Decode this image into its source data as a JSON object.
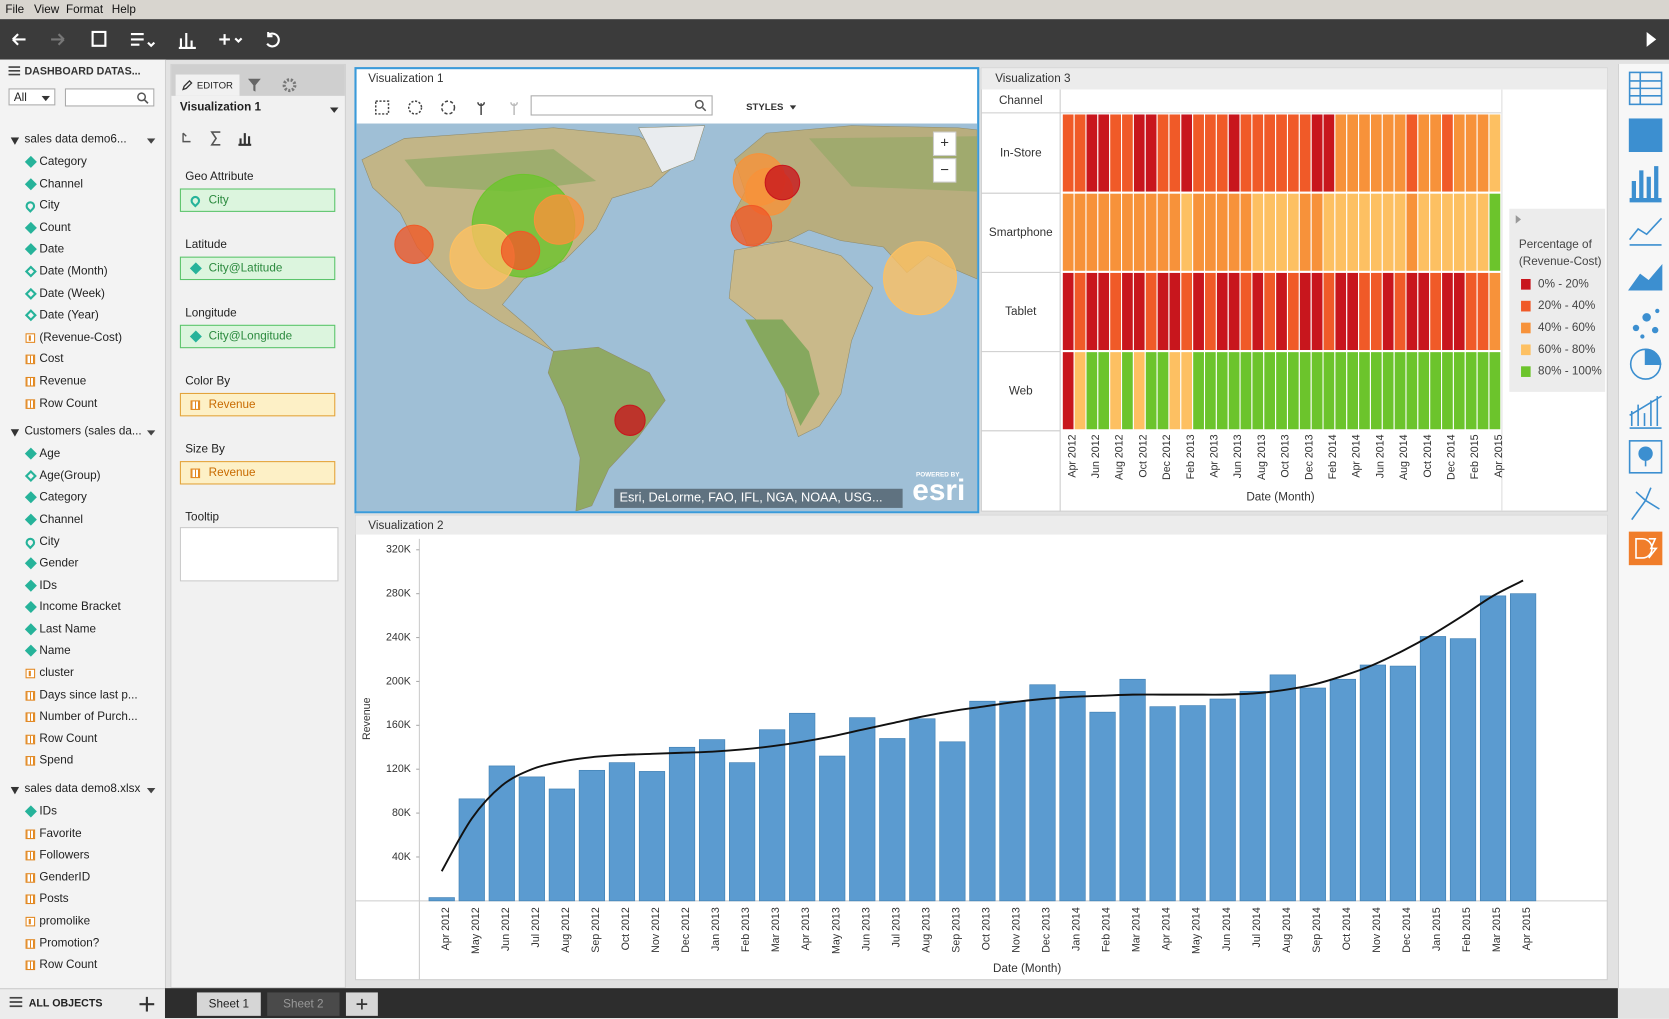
{
  "menu": [
    "File",
    "View",
    "Format",
    "Help"
  ],
  "data_panel": {
    "title": "DASHBOARD DATAS...",
    "filter": "All",
    "footer": "ALL OBJECTS",
    "sources": [
      {
        "name": "sales data demo6...",
        "fields": [
          {
            "name": "Category",
            "kind": "attribute"
          },
          {
            "name": "Channel",
            "kind": "attribute"
          },
          {
            "name": "City",
            "kind": "geo"
          },
          {
            "name": "Count",
            "kind": "attribute"
          },
          {
            "name": "Date",
            "kind": "attribute"
          },
          {
            "name": "Date (Month)",
            "kind": "derived"
          },
          {
            "name": "Date (Week)",
            "kind": "derived"
          },
          {
            "name": "Date (Year)",
            "kind": "derived"
          },
          {
            "name": "(Revenue-Cost)",
            "kind": "formula"
          },
          {
            "name": "Cost",
            "kind": "metric"
          },
          {
            "name": "Revenue",
            "kind": "metric"
          },
          {
            "name": "Row Count",
            "kind": "metric"
          }
        ]
      },
      {
        "name": "Customers (sales da...",
        "fields": [
          {
            "name": "Age",
            "kind": "attribute"
          },
          {
            "name": "Age(Group)",
            "kind": "derived"
          },
          {
            "name": "Category",
            "kind": "attribute"
          },
          {
            "name": "Channel",
            "kind": "attribute"
          },
          {
            "name": "City",
            "kind": "geo"
          },
          {
            "name": "Gender",
            "kind": "attribute"
          },
          {
            "name": "IDs",
            "kind": "attribute"
          },
          {
            "name": "Income Bracket",
            "kind": "attribute"
          },
          {
            "name": "Last Name",
            "kind": "attribute"
          },
          {
            "name": "Name",
            "kind": "attribute"
          },
          {
            "name": "cluster",
            "kind": "formula"
          },
          {
            "name": "Days since last p...",
            "kind": "metric"
          },
          {
            "name": "Number of Purch...",
            "kind": "metric"
          },
          {
            "name": "Row Count",
            "kind": "metric"
          },
          {
            "name": "Spend",
            "kind": "metric"
          }
        ]
      },
      {
        "name": "sales data demo8.xlsx",
        "fields": [
          {
            "name": "IDs",
            "kind": "attribute"
          },
          {
            "name": "Favorite",
            "kind": "metric"
          },
          {
            "name": "Followers",
            "kind": "metric"
          },
          {
            "name": "GenderID",
            "kind": "metric"
          },
          {
            "name": "Posts",
            "kind": "metric"
          },
          {
            "name": "promolike",
            "kind": "formula"
          },
          {
            "name": "Promotion?",
            "kind": "metric"
          },
          {
            "name": "Row Count",
            "kind": "metric"
          }
        ]
      }
    ]
  },
  "editor": {
    "tab": "EDITOR",
    "visualization": "Visualization 1",
    "sections": [
      {
        "label": "Geo Attribute",
        "field": {
          "name": "City",
          "kind": "geo"
        }
      },
      {
        "label": "Latitude",
        "field": {
          "name": "City@Latitude",
          "kind": "attribute"
        }
      },
      {
        "label": "Longitude",
        "field": {
          "name": "City@Longitude",
          "kind": "attribute"
        }
      },
      {
        "label": "Color By",
        "field": {
          "name": "Revenue",
          "kind": "metric"
        }
      },
      {
        "label": "Size By",
        "field": {
          "name": "Revenue",
          "kind": "metric"
        }
      },
      {
        "label": "Tooltip"
      }
    ]
  },
  "sheets": [
    "Sheet 1",
    "Sheet 2"
  ],
  "chart_data": [
    {
      "type": "map",
      "title": "Visualization 1",
      "styles_label": "STYLES",
      "attribution": "Esri, DeLorme, FAO, IFL, NGA, NOAA, USG...",
      "powered_by": "POWERED BY",
      "logo": "esri",
      "zoom_in": "+",
      "zoom_out": "−",
      "points": {
        "lon": [
          -81,
          -118,
          -95,
          -69,
          -82,
          -1.4,
          2,
          6.5,
          -4,
          53,
          -45
        ],
        "lat": [
          40,
          34,
          30,
          42,
          32,
          55,
          51,
          54,
          40,
          23,
          -23
        ],
        "size": [
          230,
          32,
          90,
          53,
          32,
          58,
          48,
          26,
          36,
          116,
          20
        ],
        "colors": [
          "#6cc42c",
          "#f05a28",
          "#fdc062",
          "#f7923a",
          "#f05a28",
          "#f7923a",
          "#f7923a",
          "#c8161d",
          "#f05a28",
          "#fdc062",
          "#c8161d"
        ]
      }
    },
    {
      "type": "heatmap",
      "title": "Visualization 3",
      "row_header": "Channel",
      "rows": [
        "In-Store",
        "Smartphone",
        "Tablet",
        "Web"
      ],
      "categories": [
        "Apr 2012",
        null,
        "Jun 2012",
        null,
        "Aug 2012",
        null,
        "Oct 2012",
        null,
        "Dec 2012",
        null,
        "Feb 2013",
        null,
        "Apr 2013",
        null,
        "Jun 2013",
        null,
        "Aug 2013",
        null,
        "Oct 2013",
        null,
        "Dec 2013",
        null,
        "Feb 2014",
        null,
        "Apr 2014",
        null,
        "Jun 2014",
        null,
        "Aug 2014",
        null,
        "Oct 2014",
        null,
        "Dec 2014",
        null,
        "Feb 2015",
        null,
        "Apr 2015"
      ],
      "values": [
        [
          30,
          30,
          10,
          10,
          30,
          30,
          10,
          10,
          30,
          30,
          10,
          30,
          30,
          30,
          10,
          30,
          30,
          30,
          30,
          30,
          30,
          10,
          10,
          50,
          50,
          50,
          50,
          50,
          50,
          30,
          50,
          50,
          30,
          50,
          50,
          50,
          70
        ],
        [
          50,
          50,
          50,
          50,
          50,
          50,
          50,
          50,
          50,
          50,
          70,
          50,
          50,
          50,
          50,
          50,
          70,
          70,
          70,
          70,
          50,
          50,
          70,
          70,
          70,
          70,
          70,
          70,
          70,
          50,
          70,
          70,
          70,
          70,
          70,
          70,
          90
        ],
        [
          10,
          30,
          10,
          10,
          30,
          10,
          10,
          30,
          10,
          10,
          30,
          10,
          30,
          10,
          10,
          30,
          10,
          30,
          10,
          30,
          10,
          10,
          30,
          10,
          10,
          30,
          30,
          10,
          30,
          10,
          10,
          30,
          10,
          10,
          30,
          30,
          50
        ],
        [
          10,
          70,
          90,
          90,
          70,
          90,
          70,
          90,
          90,
          70,
          70,
          90,
          90,
          90,
          90,
          90,
          90,
          90,
          90,
          90,
          90,
          90,
          90,
          90,
          90,
          90,
          90,
          90,
          90,
          90,
          90,
          90,
          90,
          90,
          90,
          90,
          90
        ]
      ],
      "x_label": "Date (Month)",
      "legend": {
        "title": "Percentage of (Revenue-Cost)",
        "labels": [
          "0% - 20%",
          "20% - 40%",
          "40% - 60%",
          "60% - 80%",
          "80% - 100%"
        ],
        "colors": [
          "#c8161d",
          "#f05a28",
          "#f7923a",
          "#fdc062",
          "#6cc42c"
        ]
      }
    },
    {
      "type": "bar",
      "title": "Visualization 2",
      "categories": [
        "Apr 2012",
        "May 2012",
        "Jun 2012",
        "Jul 2012",
        "Aug 2012",
        "Sep 2012",
        "Oct 2012",
        "Nov 2012",
        "Dec 2012",
        "Jan 2013",
        "Feb 2013",
        "Mar 2013",
        "Apr 2013",
        "May 2013",
        "Jun 2013",
        "Jul 2013",
        "Aug 2013",
        "Sep 2013",
        "Oct 2013",
        "Nov 2013",
        "Dec 2013",
        "Jan 2014",
        "Feb 2014",
        "Mar 2014",
        "Apr 2014",
        "May 2014",
        "Jun 2014",
        "Jul 2014",
        "Aug 2014",
        "Sep 2014",
        "Oct 2014",
        "Nov 2014",
        "Dec 2014",
        "Jan 2015",
        "Feb 2015",
        "Mar 2015",
        "Apr 2015"
      ],
      "series": [
        {
          "type": "bar",
          "color": "#5b9bd0",
          "values": [
            3000,
            93000,
            123000,
            113000,
            102000,
            119000,
            126000,
            118000,
            140000,
            147000,
            126000,
            156000,
            171000,
            132000,
            167000,
            148000,
            166000,
            145000,
            182000,
            182000,
            197000,
            191000,
            172000,
            202000,
            177000,
            178000,
            184000,
            191000,
            206000,
            194000,
            202000,
            215000,
            214000,
            241000,
            239000,
            278000,
            280000
          ]
        },
        {
          "type": "line",
          "color": "#111111",
          "values": [
            27000,
            75000,
            105000,
            120000,
            127000,
            131000,
            133000,
            134000,
            135000,
            136000,
            138000,
            141000,
            145000,
            150000,
            156000,
            162000,
            168000,
            173000,
            177000,
            181000,
            184000,
            186000,
            187000,
            188000,
            188000,
            188000,
            188000,
            189000,
            192000,
            197000,
            205000,
            215000,
            228000,
            243000,
            260000,
            278000,
            292000
          ]
        }
      ],
      "ylim": [
        0,
        330000
      ],
      "yticks": [
        {
          "value": 40000,
          "label": "40K"
        },
        {
          "value": 80000,
          "label": "80K"
        },
        {
          "value": 120000,
          "label": "120K"
        },
        {
          "value": 160000,
          "label": "160K"
        },
        {
          "value": 200000,
          "label": "200K"
        },
        {
          "value": 240000,
          "label": "240K"
        },
        {
          "value": 280000,
          "label": "280K"
        },
        {
          "value": 320000,
          "label": "320K"
        }
      ],
      "y_label": "Revenue",
      "x_label": "Date (Month)"
    }
  ]
}
